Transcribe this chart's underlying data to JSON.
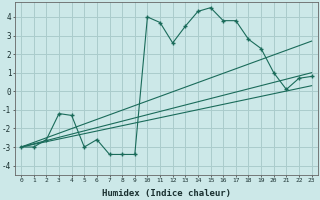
{
  "xlabel": "Humidex (Indice chaleur)",
  "background_color": "#cce8e8",
  "grid_color": "#aacccc",
  "line_color": "#1a6b5a",
  "xlim": [
    -0.5,
    23.5
  ],
  "ylim": [
    -4.5,
    4.8
  ],
  "yticks": [
    -4,
    -3,
    -2,
    -1,
    0,
    1,
    2,
    3,
    4
  ],
  "xticks": [
    0,
    1,
    2,
    3,
    4,
    5,
    6,
    7,
    8,
    9,
    10,
    11,
    12,
    13,
    14,
    15,
    16,
    17,
    18,
    19,
    20,
    21,
    22,
    23
  ],
  "line1_x": [
    0,
    1,
    2,
    3,
    4,
    5,
    6,
    7,
    8,
    9,
    10,
    11,
    12,
    13,
    14,
    15,
    16,
    17,
    18,
    19,
    20,
    21,
    22,
    23
  ],
  "line1_y": [
    -3.0,
    -3.0,
    -2.6,
    -1.2,
    -1.3,
    -3.0,
    -2.6,
    -3.4,
    -3.4,
    -3.4,
    4.0,
    3.7,
    2.6,
    3.5,
    4.3,
    4.5,
    3.8,
    3.8,
    2.8,
    2.3,
    1.0,
    0.1,
    0.7,
    0.8
  ],
  "line2_x": [
    0,
    23
  ],
  "line2_y": [
    -3.0,
    2.7
  ],
  "line3_x": [
    0,
    23
  ],
  "line3_y": [
    -3.0,
    1.0
  ],
  "line4_x": [
    0,
    23
  ],
  "line4_y": [
    -3.0,
    0.3
  ]
}
